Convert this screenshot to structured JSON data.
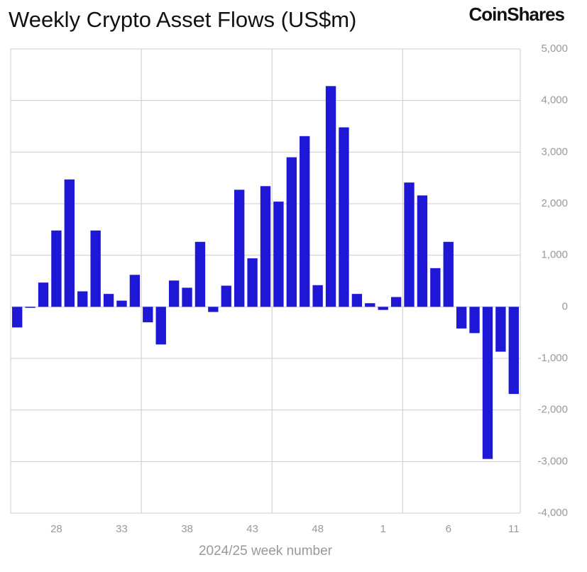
{
  "chart_data": {
    "type": "bar",
    "title": "Weekly Crypto Asset Flows (US$m)",
    "source": "CoinShares",
    "x_label": "2024/25 week number",
    "categories": [
      null,
      null,
      null,
      "28",
      null,
      null,
      null,
      null,
      "33",
      null,
      null,
      null,
      null,
      "38",
      null,
      null,
      null,
      null,
      "43",
      null,
      null,
      null,
      null,
      "48",
      null,
      null,
      null,
      null,
      "1",
      null,
      null,
      null,
      null,
      "6",
      null,
      null,
      null,
      null,
      "11"
    ],
    "values": [
      -400,
      -20,
      470,
      1480,
      2470,
      300,
      1480,
      250,
      120,
      620,
      -300,
      -730,
      510,
      370,
      1260,
      -100,
      410,
      2270,
      940,
      2340,
      2040,
      2900,
      3310,
      420,
      4280,
      3480,
      250,
      70,
      -60,
      190,
      2410,
      2160,
      750,
      1260,
      -420,
      -510,
      -2950,
      -870,
      -1690
    ],
    "color": "#1e17d6",
    "ylim": [
      -4000,
      5000
    ],
    "yticks": [
      {
        "value": -4000,
        "label": "-4,000"
      },
      {
        "value": -3000,
        "label": "-3,000"
      },
      {
        "value": -2000,
        "label": "-2,000"
      },
      {
        "value": -1000,
        "label": "-1,000"
      },
      0,
      {
        "value": 1000,
        "label": "1,000"
      },
      {
        "value": 2000,
        "label": "2,000"
      },
      {
        "value": 3000,
        "label": "3,000"
      },
      {
        "value": 4000,
        "label": "4,000"
      },
      {
        "value": 5000,
        "label": "5,000"
      }
    ],
    "grid": true
  }
}
